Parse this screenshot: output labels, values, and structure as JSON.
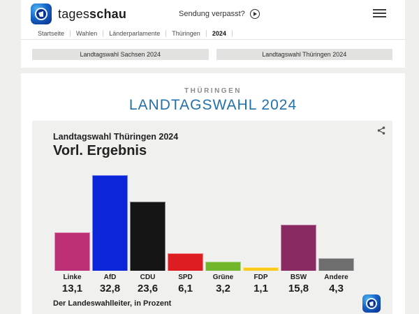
{
  "header": {
    "brand_regular": "tages",
    "brand_bold": "schau",
    "sendung_verpasst": "Sendung verpasst?"
  },
  "icons": {
    "brand_logo": "tagesschau-globe",
    "play": "play-circle",
    "menu": "hamburger-menu",
    "share": "share-nodes",
    "watermark": "ard-tagesschau-globe"
  },
  "breadcrumb": {
    "items": [
      "Startseite",
      "Wahlen",
      "Länderparlamente",
      "Thüringen",
      "2024"
    ],
    "active": "2024"
  },
  "tabs": [
    {
      "label": "Landtagswahl Sachsen 2024"
    },
    {
      "label": "Landtagswahl Thüringen 2024"
    }
  ],
  "main": {
    "kicker": "THÜRINGEN",
    "title": "LANDTAGSWAHL 2024",
    "title_color": "#2371ab"
  },
  "chart_data": {
    "type": "bar",
    "kicker": "Landtagswahl Thüringen 2024",
    "title": "Vorl. Ergebnis",
    "categories": [
      "Linke",
      "AfD",
      "CDU",
      "SPD",
      "Grüne",
      "FDP",
      "BSW",
      "Andere"
    ],
    "values": [
      13.1,
      32.8,
      23.6,
      6.1,
      3.2,
      1.1,
      15.8,
      4.3
    ],
    "value_labels": [
      "13,1",
      "32,8",
      "23,6",
      "6,1",
      "3,2",
      "1,1",
      "15,8",
      "4,3"
    ],
    "colors": [
      "#be3075",
      "#0c25d8",
      "#151515",
      "#dd1d22",
      "#72b62b",
      "#fcca1c",
      "#8a2a62",
      "#6e6e6e"
    ],
    "ylabel": "Prozent",
    "ylim": [
      0,
      34
    ],
    "grid": false,
    "legend": "none",
    "source": "Der Landeswahlleiter, in Prozent"
  }
}
